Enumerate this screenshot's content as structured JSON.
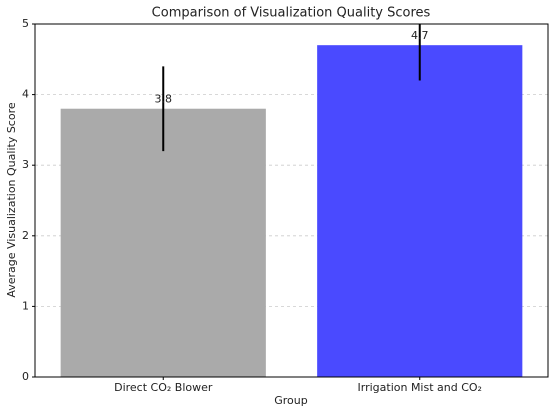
{
  "chart_data": {
    "type": "bar",
    "title": "Comparison of Visualization Quality Scores",
    "x_label": "Group",
    "y_label": "Average Visualization Quality Score",
    "categories": [
      "Direct CO₂ Blower",
      "Irrigation Mist and CO₂"
    ],
    "values": [
      3.8,
      4.7
    ],
    "errors": [
      0.6,
      0.5
    ],
    "colors": [
      "#aaaaaa",
      "#4a4aff"
    ],
    "ylim": [
      0,
      5
    ],
    "yticks": [
      0,
      1,
      2,
      3,
      4,
      5
    ],
    "grid": true
  }
}
